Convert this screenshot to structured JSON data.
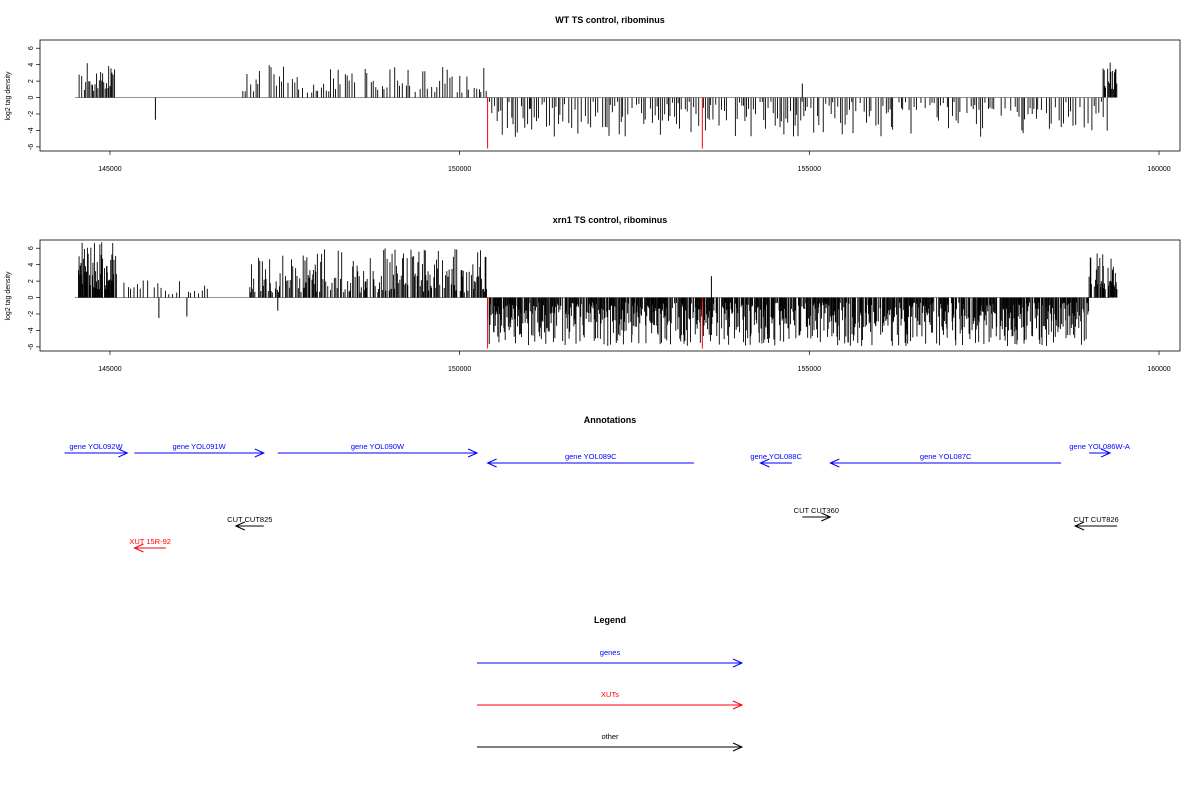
{
  "chart_data": [
    {
      "type": "bar",
      "title": "WT TS control, ribominus",
      "xlabel": "",
      "ylabel": "log2 tag density",
      "xlim": [
        144000,
        160300
      ],
      "ylim": [
        -6.5,
        7
      ],
      "xticks": [
        145000,
        150000,
        155000,
        160000
      ],
      "xtick_labels": [
        "145000",
        "150000",
        "155000",
        "160000"
      ],
      "yticks": [
        -6,
        -4,
        -2,
        0,
        2,
        4,
        6
      ],
      "ytick_labels": [
        "-6",
        "-4",
        "-2",
        "0",
        "2",
        "4",
        "6"
      ],
      "baseline_range": [
        144500,
        159200
      ],
      "segments": [
        {
          "from": 144550,
          "to": 145100,
          "min": 0.8,
          "max": 4.4,
          "step": 15,
          "dir": 1
        },
        {
          "from": 146900,
          "to": 150400,
          "min": 0.6,
          "max": 4.0,
          "step": 30,
          "dir": 1
        },
        {
          "from": 150400,
          "to": 159300,
          "min": 0.5,
          "max": 4.8,
          "step": 28,
          "dir": -1
        },
        {
          "from": 159200,
          "to": 159400,
          "min": 1.0,
          "max": 4.7,
          "step": 12,
          "dir": 1
        }
      ],
      "special_bars": [
        {
          "x": 145650,
          "y": -2.7,
          "color": "#000000"
        },
        {
          "x": 151000,
          "y": -1.4,
          "color": "#000000"
        },
        {
          "x": 154900,
          "y": 1.7,
          "color": "#000000"
        },
        {
          "x": 150400,
          "y": -6.2,
          "color": "#ff0000"
        },
        {
          "x": 153470,
          "y": -6.2,
          "color": "#ff0000"
        }
      ]
    },
    {
      "type": "bar",
      "title": "xrn1 TS control, ribominus",
      "xlabel": "",
      "ylabel": "log2 tag density",
      "xlim": [
        144000,
        160300
      ],
      "ylim": [
        -6.5,
        7
      ],
      "xticks": [
        145000,
        150000,
        155000,
        160000
      ],
      "xtick_labels": [
        "145000",
        "150000",
        "155000",
        "160000"
      ],
      "yticks": [
        -6,
        -4,
        -2,
        0,
        2,
        4,
        6
      ],
      "ytick_labels": [
        "-6",
        "-4",
        "-2",
        "0",
        "2",
        "4",
        "6"
      ],
      "baseline_range": [
        144500,
        159300
      ],
      "segments": [
        {
          "from": 144550,
          "to": 145100,
          "min": 1.0,
          "max": 6.8,
          "step": 8,
          "dir": 1
        },
        {
          "from": 145200,
          "to": 146400,
          "min": 0.4,
          "max": 2.6,
          "step": 45,
          "dir": 1
        },
        {
          "from": 147000,
          "to": 150400,
          "min": 0.6,
          "max": 6.0,
          "step": 14,
          "dir": 1
        },
        {
          "from": 150400,
          "to": 159000,
          "min": 0.6,
          "max": 5.9,
          "step": 9,
          "dir": -1
        },
        {
          "from": 159000,
          "to": 159400,
          "min": 1.0,
          "max": 5.4,
          "step": 8,
          "dir": 1
        }
      ],
      "special_bars": [
        {
          "x": 145700,
          "y": -2.5,
          "color": "#000000"
        },
        {
          "x": 146100,
          "y": -2.3,
          "color": "#000000"
        },
        {
          "x": 147400,
          "y": -1.6,
          "color": "#000000"
        },
        {
          "x": 153600,
          "y": 2.6,
          "color": "#000000"
        },
        {
          "x": 150400,
          "y": -6.2,
          "color": "#ff0000"
        },
        {
          "x": 153470,
          "y": -6.2,
          "color": "#ff0000"
        }
      ]
    }
  ],
  "annotations": {
    "title": "Annotations",
    "items": [
      {
        "label": "gene YOL092W",
        "color": "#0000ff",
        "from": 144350,
        "to": 145250,
        "row": 0
      },
      {
        "label": "gene YOL091W",
        "color": "#0000ff",
        "from": 145350,
        "to": 147200,
        "row": 0
      },
      {
        "label": "gene YOL090W",
        "color": "#0000ff",
        "from": 147400,
        "to": 150250,
        "row": 0
      },
      {
        "label": "gene YOL089C",
        "color": "#0000ff",
        "from": 153350,
        "to": 150400,
        "row": 1
      },
      {
        "label": "gene YOL088C",
        "color": "#0000ff",
        "from": 154750,
        "to": 154300,
        "row": 1
      },
      {
        "label": "gene YOL087C",
        "color": "#0000ff",
        "from": 158600,
        "to": 155300,
        "row": 1
      },
      {
        "label": "gene YOL086W-A",
        "color": "#0000ff",
        "from": 159000,
        "to": 159300,
        "row": 0
      },
      {
        "label": "CUT CUT825",
        "color": "#000000",
        "from": 147200,
        "to": 146800,
        "row": 4
      },
      {
        "label": "CUT CUT360",
        "color": "#000000",
        "from": 154900,
        "to": 155300,
        "row": 3
      },
      {
        "label": "CUT CUT826",
        "color": "#000000",
        "from": 159400,
        "to": 158800,
        "row": 4
      },
      {
        "label": "XUT 15R-92",
        "color": "#ff0000",
        "from": 145800,
        "to": 145350,
        "row": 5
      }
    ]
  },
  "legend": {
    "title": "Legend",
    "items": [
      {
        "label": "genes",
        "color": "#0000ff"
      },
      {
        "label": "XUTs",
        "color": "#ff0000"
      },
      {
        "label": "other",
        "color": "#000000"
      }
    ]
  }
}
